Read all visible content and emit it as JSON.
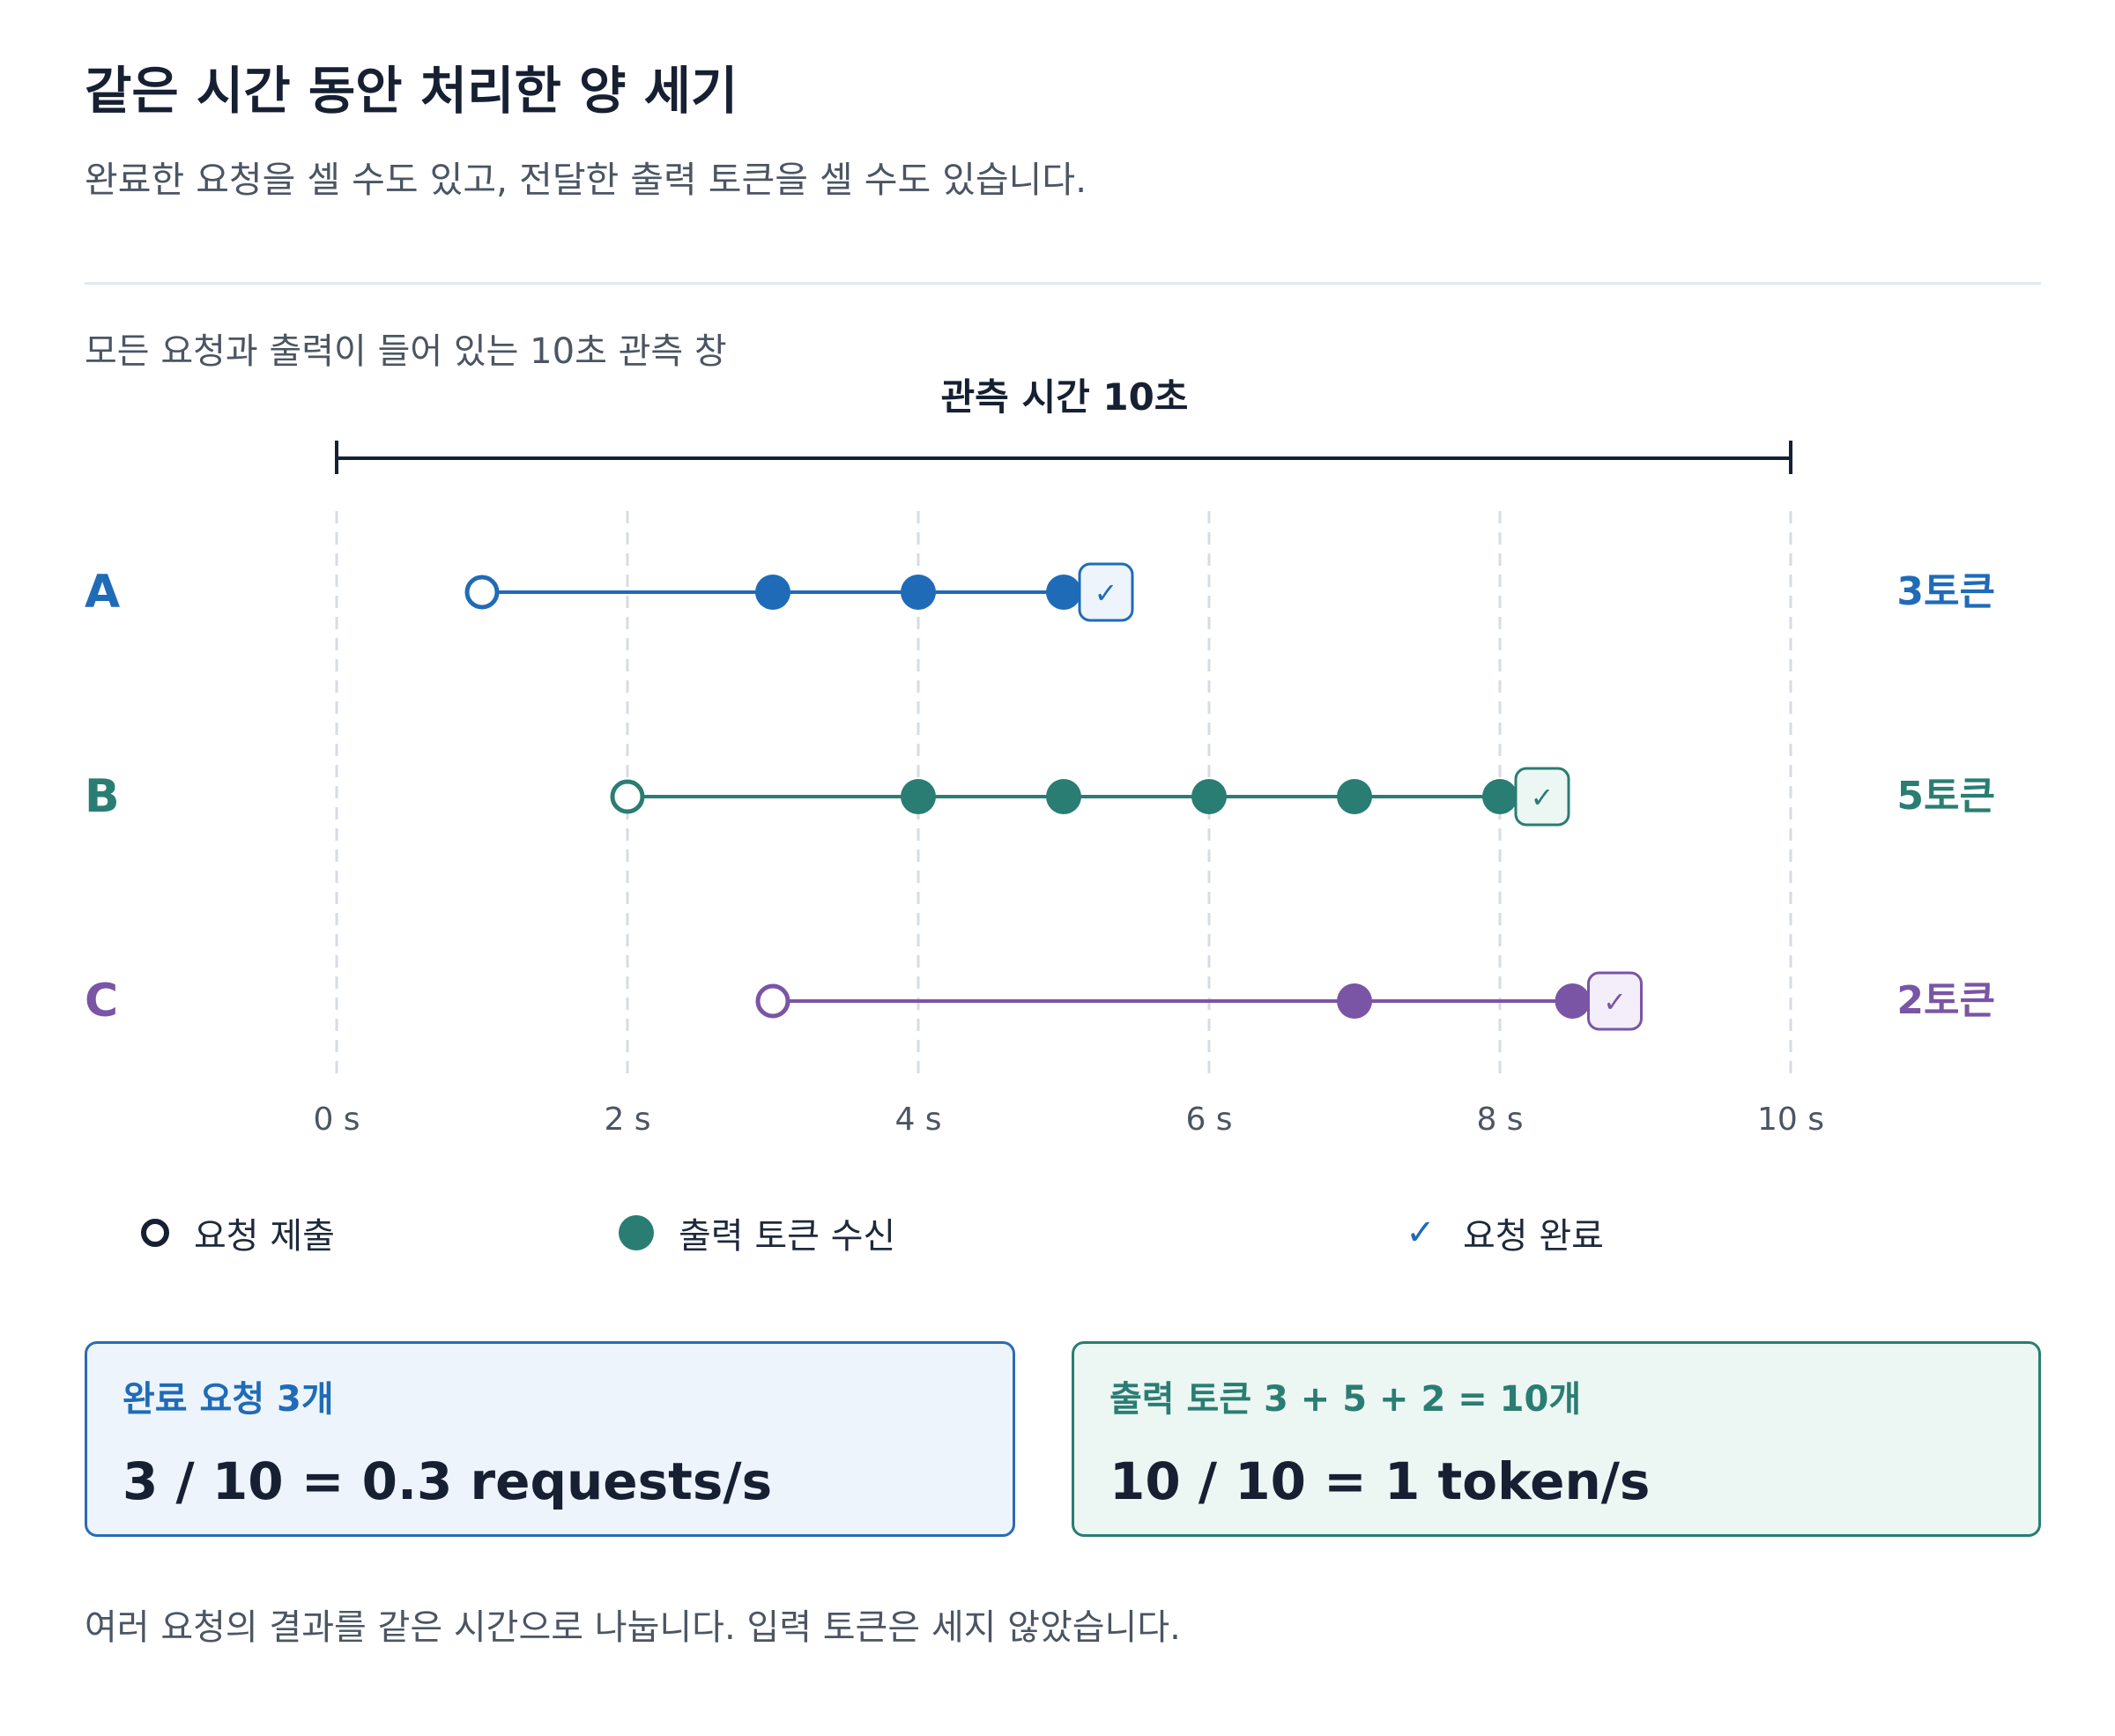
{
  "header": {
    "title": "같은 시간 동안 처리한 양 세기",
    "subtitle": "완료한 요청을 셀 수도 있고, 전달한 출력 토큰을 셀 수도 있습니다."
  },
  "section_label": "모든 요청과 출력이 들어 있는 10초 관측 창",
  "window_label": "관측 시간 10초",
  "axis": {
    "ticks": [
      0,
      2,
      4,
      6,
      8,
      10
    ],
    "tick_labels": [
      "0 s",
      "2 s",
      "4 s",
      "6 s",
      "8 s",
      "10 s"
    ]
  },
  "requests": [
    {
      "label": "A",
      "color": "#1f6bb8",
      "submit": 1,
      "tokens": [
        3,
        4,
        5
      ],
      "token_label": "3토큰"
    },
    {
      "label": "B",
      "color": "#2a7d72",
      "submit": 2,
      "tokens": [
        4,
        5,
        6,
        7,
        8
      ],
      "token_label": "5토큰"
    },
    {
      "label": "C",
      "color": "#7a55a5",
      "submit": 3,
      "tokens": [
        7,
        8.5
      ],
      "token_label": "2토큰"
    }
  ],
  "legend": {
    "submit": "요청 제출",
    "token": "출력 토큰 수신",
    "complete": "요청 완료",
    "check_symbol": "✓"
  },
  "cards": {
    "requests_label": "완료 요청 3개",
    "requests_formula": "3 / 10 = 0.3 requests/s",
    "tokens_label": "출력 토큰 3 + 5 + 2 = 10개",
    "tokens_formula": "10 / 10 = 1 token/s"
  },
  "footnote": "여러 요청의 결과를 같은 시간으로 나눕니다. 입력 토큰은 세지 않았습니다."
}
